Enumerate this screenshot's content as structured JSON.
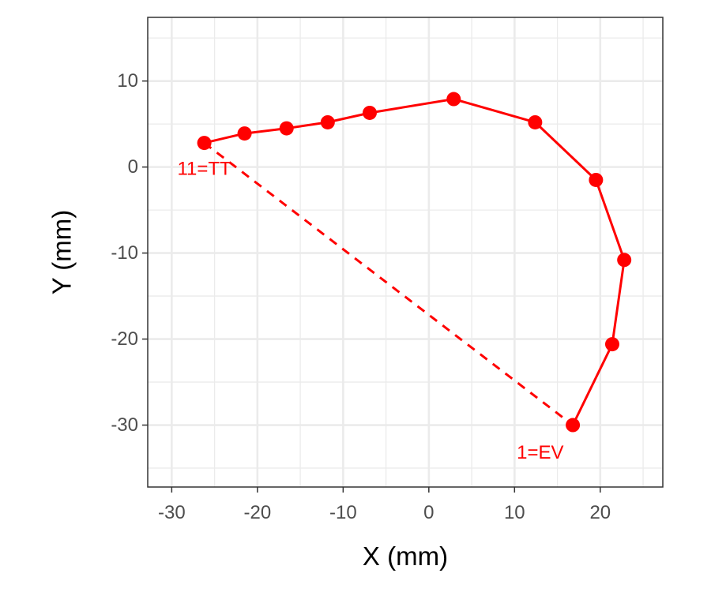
{
  "chart_data": {
    "type": "line",
    "xlabel": "X (mm)",
    "ylabel": "Y (mm)",
    "xlim": [
      -32.8,
      27.3
    ],
    "ylim": [
      -37.2,
      17.4
    ],
    "x_ticks": [
      -30,
      -20,
      -10,
      0,
      10,
      20
    ],
    "y_ticks": [
      10,
      0,
      -10,
      -20,
      -30
    ],
    "x_tick_labels": [
      "-30",
      "-20",
      "-10",
      "0",
      "10",
      "20"
    ],
    "y_tick_labels": [
      "10",
      "0",
      "-10",
      "-20",
      "-30"
    ],
    "grid": true,
    "series": [
      {
        "points": [
          {
            "x": 16.8,
            "y": -30.0
          },
          {
            "x": 21.4,
            "y": -20.6
          },
          {
            "x": 22.8,
            "y": -10.8
          },
          {
            "x": 19.5,
            "y": -1.5
          },
          {
            "x": 12.4,
            "y": 5.2
          },
          {
            "x": 2.9,
            "y": 7.9
          },
          {
            "x": -6.9,
            "y": 6.3
          },
          {
            "x": -11.8,
            "y": 5.2
          },
          {
            "x": -16.6,
            "y": 4.5
          },
          {
            "x": -21.5,
            "y": 3.9
          },
          {
            "x": -26.2,
            "y": 2.8
          }
        ]
      }
    ],
    "closing_segment": {
      "from": 10,
      "to": 0,
      "style": "dashed"
    },
    "annotations": [
      {
        "text": "1=EV",
        "x": 13.0,
        "y": -33.2
      },
      {
        "text": "11=TT",
        "x": -26.2,
        "y": -0.2
      }
    ],
    "colors": {
      "series": "#ff0000",
      "grid": "#ebebeb",
      "panel_border": "#333333",
      "tick_text": "#4d4d4d"
    }
  }
}
